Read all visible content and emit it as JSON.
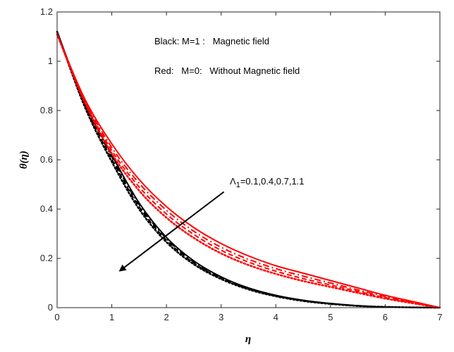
{
  "chart_data": {
    "type": "line",
    "title": "",
    "xlabel": "η",
    "ylabel": "θ(η)",
    "xlim": [
      0,
      7
    ],
    "ylim": [
      0,
      1.2
    ],
    "xticks": [
      0,
      1,
      2,
      3,
      4,
      5,
      6,
      7
    ],
    "yticks": [
      0,
      0.2,
      0.4,
      0.6,
      0.8,
      1,
      1.2
    ],
    "xtick_labels": [
      "0",
      "1",
      "2",
      "3",
      "4",
      "5",
      "6",
      "7"
    ],
    "ytick_labels": [
      "0",
      "0.2",
      "0.4",
      "0.6",
      "0.8",
      "1",
      "1.2"
    ],
    "colors": {
      "magnetic": "#000000",
      "no_magnetic": "#ff0000",
      "axis": "#262626"
    },
    "annotations": {
      "legend_black": "Black: M=1 :   Magnetic field",
      "legend_red": "Red:   M=0:   Without Magnetic field",
      "param_symbol": "Λ",
      "param_sub": "1",
      "param_values": "=0.1,0.4,0.7,1.1",
      "arrow_start": [
        3.05,
        0.47
      ],
      "arrow_end": [
        1.15,
        0.15
      ]
    },
    "series": [
      {
        "name": "M=1, Λ1=0.1",
        "color": "#000000",
        "style": "solid",
        "x": [
          0,
          0.5,
          1,
          1.5,
          2,
          2.5,
          3,
          3.5,
          4,
          4.5,
          5,
          5.5,
          6,
          6.5,
          7
        ],
        "y": [
          1.12,
          0.835,
          0.62,
          0.425,
          0.285,
          0.19,
          0.125,
          0.08,
          0.05,
          0.03,
          0.017,
          0.008,
          0.003,
          0.001,
          0
        ]
      },
      {
        "name": "M=1, Λ1=0.4",
        "color": "#000000",
        "style": "dashdot",
        "x": [
          0,
          0.5,
          1,
          1.5,
          2,
          2.5,
          3,
          3.5,
          4,
          4.5,
          5,
          5.5,
          6,
          6.5,
          7
        ],
        "y": [
          1.12,
          0.83,
          0.612,
          0.418,
          0.28,
          0.185,
          0.122,
          0.078,
          0.048,
          0.029,
          0.016,
          0.008,
          0.003,
          0.001,
          0
        ]
      },
      {
        "name": "M=1, Λ1=0.7",
        "color": "#000000",
        "style": "dashed",
        "x": [
          0,
          0.5,
          1,
          1.5,
          2,
          2.5,
          3,
          3.5,
          4,
          4.5,
          5,
          5.5,
          6,
          6.5,
          7
        ],
        "y": [
          1.12,
          0.825,
          0.603,
          0.41,
          0.274,
          0.181,
          0.119,
          0.076,
          0.047,
          0.028,
          0.016,
          0.007,
          0.003,
          0.001,
          0
        ]
      },
      {
        "name": "M=1, Λ1=1.1",
        "color": "#000000",
        "style": "dotted",
        "x": [
          0,
          0.5,
          1,
          1.5,
          2,
          2.5,
          3,
          3.5,
          4,
          4.5,
          5,
          5.5,
          6,
          6.5,
          7
        ],
        "y": [
          1.12,
          0.818,
          0.592,
          0.4,
          0.266,
          0.176,
          0.116,
          0.074,
          0.046,
          0.027,
          0.015,
          0.007,
          0.003,
          0.001,
          0
        ]
      },
      {
        "name": "M=0, Λ1=0.1",
        "color": "#ff0000",
        "style": "solid",
        "x": [
          0,
          0.5,
          1,
          1.5,
          2,
          2.5,
          3,
          3.5,
          4,
          4.5,
          5,
          5.5,
          6,
          6.5,
          7
        ],
        "y": [
          1.11,
          0.85,
          0.665,
          0.52,
          0.41,
          0.325,
          0.26,
          0.21,
          0.17,
          0.14,
          0.11,
          0.08,
          0.05,
          0.025,
          0
        ]
      },
      {
        "name": "M=0, Λ1=0.4",
        "color": "#ff0000",
        "style": "dashdot",
        "x": [
          0,
          0.5,
          1,
          1.5,
          2,
          2.5,
          3,
          3.5,
          4,
          4.5,
          5,
          5.5,
          6,
          6.5,
          7
        ],
        "y": [
          1.11,
          0.845,
          0.65,
          0.505,
          0.395,
          0.31,
          0.245,
          0.196,
          0.158,
          0.128,
          0.1,
          0.072,
          0.045,
          0.022,
          0
        ]
      },
      {
        "name": "M=0, Λ1=0.7",
        "color": "#ff0000",
        "style": "dashed",
        "x": [
          0,
          0.5,
          1,
          1.5,
          2,
          2.5,
          3,
          3.5,
          4,
          4.5,
          5,
          5.5,
          6,
          6.5,
          7
        ],
        "y": [
          1.11,
          0.84,
          0.638,
          0.49,
          0.38,
          0.297,
          0.233,
          0.185,
          0.148,
          0.118,
          0.092,
          0.066,
          0.041,
          0.02,
          0
        ]
      },
      {
        "name": "M=0, Λ1=1.1",
        "color": "#ff0000",
        "style": "dotted",
        "x": [
          0,
          0.5,
          1,
          1.5,
          2,
          2.5,
          3,
          3.5,
          4,
          4.5,
          5,
          5.5,
          6,
          6.5,
          7
        ],
        "y": [
          1.11,
          0.835,
          0.625,
          0.475,
          0.365,
          0.283,
          0.22,
          0.173,
          0.137,
          0.108,
          0.084,
          0.06,
          0.037,
          0.018,
          0
        ]
      }
    ]
  }
}
